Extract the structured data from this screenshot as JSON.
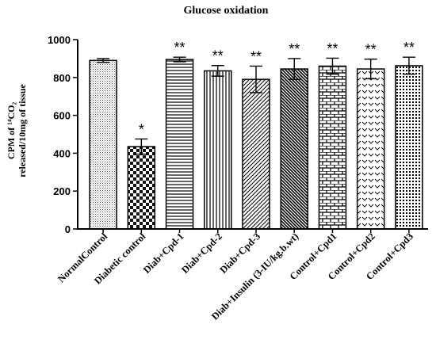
{
  "chart_data": {
    "type": "bar",
    "title": "Glucose oxidation",
    "ylabel_line1": "CPM of ¹⁴CO₂",
    "ylabel_line2": "released/10mg of tissue",
    "xlabel": "",
    "ylim": [
      0,
      1000
    ],
    "yticks": [
      0,
      200,
      400,
      600,
      800,
      1000
    ],
    "categories": [
      "NormalControl",
      "Diabetic control",
      "Diab+Cpd-1",
      "Diab+Cpd-2",
      "Diab+Cpd-3",
      "Diab+Insulin (3-IU/kg.b.wt)",
      "Control+Cpd1",
      "Control+Cpd2",
      "Control+Cpd3"
    ],
    "values": [
      890,
      435,
      895,
      835,
      790,
      845,
      860,
      845,
      862
    ],
    "errors": [
      10,
      40,
      12,
      28,
      70,
      55,
      42,
      52,
      45
    ],
    "significance": [
      "",
      "*",
      "**",
      "**",
      "**",
      "**",
      "**",
      "**",
      "**"
    ],
    "patterns": [
      "dots-fine",
      "checker",
      "hlines",
      "vlines",
      "diag-right",
      "diag-left-dense",
      "bricks",
      "chevrons",
      "dots-grid"
    ],
    "grid": false,
    "legend": "none"
  }
}
